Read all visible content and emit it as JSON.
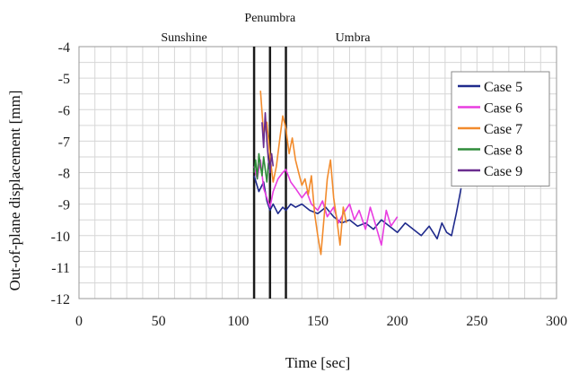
{
  "chart_data": {
    "type": "line",
    "title": "",
    "xlabel": "Time [sec]",
    "ylabel": "Out-of-plane displacement [mm]",
    "xlim": [
      0,
      300
    ],
    "ylim": [
      -12,
      -4
    ],
    "xticks": [
      0,
      50,
      100,
      150,
      200,
      250,
      300
    ],
    "yticks": [
      -4,
      -5,
      -6,
      -7,
      -8,
      -9,
      -10,
      -11,
      -12
    ],
    "grid": true,
    "legend_position": "right",
    "phase_labels": [
      {
        "text": "Sunshine",
        "x": 66
      },
      {
        "text": "Penumbra",
        "x": 120
      },
      {
        "text": "Umbra",
        "x": 172
      }
    ],
    "vertical_lines": [
      110,
      120,
      130
    ],
    "series": [
      {
        "name": "Case 5",
        "color": "#1f2a8c",
        "x": [
          110,
          113,
          116,
          118,
          120,
          122,
          125,
          128,
          130,
          133,
          136,
          140,
          145,
          150,
          155,
          160,
          165,
          170,
          175,
          180,
          185,
          190,
          195,
          200,
          205,
          210,
          215,
          220,
          225,
          228,
          231,
          234,
          237,
          240
        ],
        "y": [
          -8.1,
          -8.6,
          -8.3,
          -8.9,
          -9.2,
          -9.0,
          -9.3,
          -9.1,
          -9.2,
          -9.0,
          -9.1,
          -9.0,
          -9.2,
          -9.3,
          -9.1,
          -9.4,
          -9.6,
          -9.5,
          -9.7,
          -9.6,
          -9.8,
          -9.5,
          -9.7,
          -9.9,
          -9.6,
          -9.8,
          -10.0,
          -9.7,
          -10.1,
          -9.6,
          -9.9,
          -10.0,
          -9.3,
          -8.5
        ]
      },
      {
        "name": "Case 6",
        "color": "#e83de0",
        "x": [
          110,
          112,
          114,
          116,
          118,
          120,
          122,
          125,
          128,
          130,
          133,
          136,
          140,
          143,
          146,
          150,
          153,
          156,
          160,
          163,
          166,
          170,
          173,
          176,
          180,
          183,
          186,
          190,
          193,
          196,
          200
        ],
        "y": [
          -7.8,
          -8.2,
          -7.6,
          -8.5,
          -8.8,
          -9.1,
          -8.6,
          -8.2,
          -8.0,
          -7.9,
          -8.3,
          -8.5,
          -8.8,
          -8.6,
          -9.0,
          -9.2,
          -8.9,
          -9.4,
          -9.1,
          -9.6,
          -9.3,
          -9.0,
          -9.5,
          -9.2,
          -9.8,
          -9.1,
          -9.6,
          -10.3,
          -9.2,
          -9.7,
          -9.4
        ]
      },
      {
        "name": "Case 7",
        "color": "#f28b2c",
        "x": [
          114,
          116,
          118,
          120,
          122,
          124,
          126,
          128,
          130,
          132,
          134,
          136,
          138,
          140,
          142,
          144,
          146,
          148,
          150,
          152,
          154,
          156,
          158,
          160,
          162,
          164,
          166,
          168
        ],
        "y": [
          -5.4,
          -6.8,
          -6.4,
          -7.5,
          -8.3,
          -7.8,
          -7.0,
          -6.2,
          -6.6,
          -7.4,
          -6.9,
          -7.6,
          -8.0,
          -8.4,
          -8.2,
          -8.7,
          -8.1,
          -9.3,
          -10.0,
          -10.6,
          -9.4,
          -8.2,
          -7.6,
          -8.8,
          -9.5,
          -10.3,
          -9.1,
          -9.6
        ]
      },
      {
        "name": "Case 8",
        "color": "#2f8b3a",
        "x": [
          110,
          111,
          112,
          113,
          114,
          115,
          116,
          117,
          118,
          119,
          120
        ],
        "y": [
          -8.0,
          -7.6,
          -8.2,
          -7.4,
          -7.8,
          -8.1,
          -7.5,
          -7.9,
          -8.3,
          -7.7,
          -8.0
        ]
      },
      {
        "name": "Case 9",
        "color": "#6a2d8f",
        "x": [
          115,
          116,
          117,
          118,
          119,
          120,
          121,
          122
        ],
        "y": [
          -6.4,
          -7.2,
          -6.1,
          -7.0,
          -7.6,
          -8.0,
          -7.4,
          -7.8
        ]
      }
    ]
  }
}
